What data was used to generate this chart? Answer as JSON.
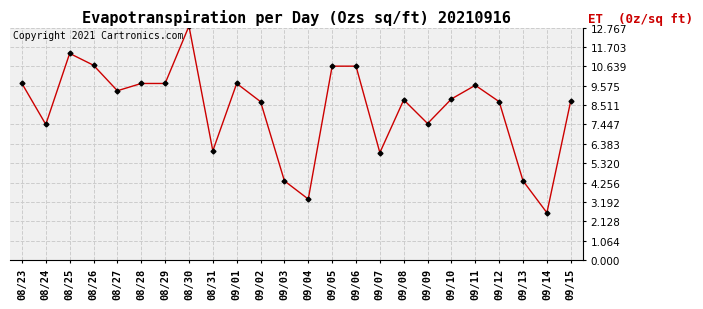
{
  "title": "Evapotranspiration per Day (Ozs sq/ft) 20210916",
  "copyright": "Copyright 2021 Cartronics.com",
  "legend_label": "ET  (0z/sq ft)",
  "x_labels": [
    "08/23",
    "08/24",
    "08/25",
    "08/26",
    "08/27",
    "08/28",
    "08/29",
    "08/30",
    "08/31",
    "09/01",
    "09/02",
    "09/03",
    "09/04",
    "09/05",
    "09/06",
    "09/07",
    "09/08",
    "09/09",
    "09/10",
    "09/11",
    "09/12",
    "09/13",
    "09/14",
    "09/15"
  ],
  "y_values": [
    9.7,
    7.45,
    11.35,
    10.7,
    9.3,
    9.7,
    9.7,
    12.85,
    6.0,
    9.7,
    8.7,
    4.35,
    3.35,
    10.65,
    10.65,
    5.9,
    8.8,
    7.5,
    8.85,
    9.6,
    8.7,
    4.35,
    2.6,
    8.75
  ],
  "line_color": "#cc0000",
  "marker_color": "#000000",
  "fig_bg_color": "#ffffff",
  "plot_bg_color": "#f0f0f0",
  "grid_color": "#cccccc",
  "ylim": [
    0.0,
    12.767
  ],
  "yticks": [
    0.0,
    1.064,
    2.128,
    3.192,
    4.256,
    5.32,
    6.383,
    7.447,
    8.511,
    9.575,
    10.639,
    11.703,
    12.767
  ],
  "title_fontsize": 11,
  "copyright_fontsize": 7,
  "legend_fontsize": 9,
  "tick_fontsize": 7.5
}
